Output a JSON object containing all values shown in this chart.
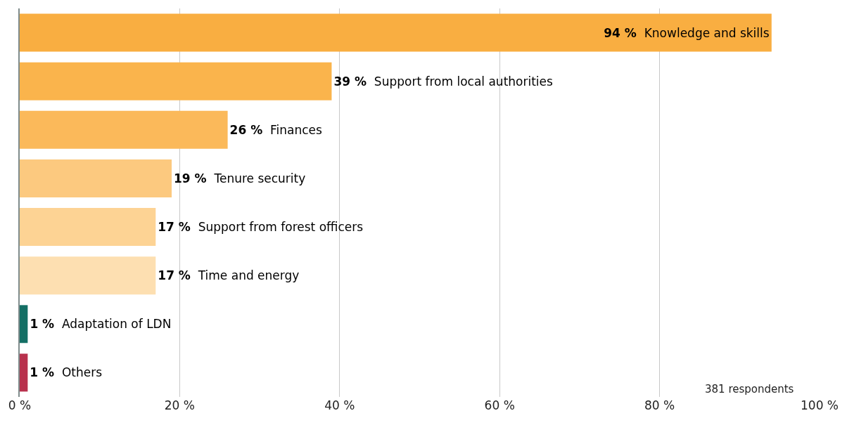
{
  "chart_data": {
    "type": "bar",
    "orientation": "horizontal",
    "categories": [
      "Knowledge and skills",
      "Support from local authorities",
      "Finances",
      "Tenure security",
      "Support from forest officers",
      "Time and energy",
      "Adaptation of LDN",
      "Others"
    ],
    "values": [
      94,
      39,
      26,
      19,
      17,
      17,
      1,
      1
    ],
    "value_labels": [
      "94 %",
      "39 %",
      "26 %",
      "19 %",
      "17 %",
      "17 %",
      "1 %",
      "1 %"
    ],
    "colors": [
      "#f9ae41",
      "#fab44c",
      "#fbb95a",
      "#fcc97f",
      "#fdd394",
      "#fddfb1",
      "#146f65",
      "#b8314d"
    ],
    "xlim": [
      0,
      100
    ],
    "xticks": [
      {
        "value": 0,
        "label": "0 %"
      },
      {
        "value": 20,
        "label": "20 %"
      },
      {
        "value": 40,
        "label": "40 %"
      },
      {
        "value": 60,
        "label": "60 %"
      },
      {
        "value": 80,
        "label": "80 %"
      },
      {
        "value": 100,
        "label": "100 %"
      }
    ],
    "grid": "x",
    "legend": false,
    "tick_labels": "x",
    "annotations": [
      "381 respondents"
    ]
  }
}
